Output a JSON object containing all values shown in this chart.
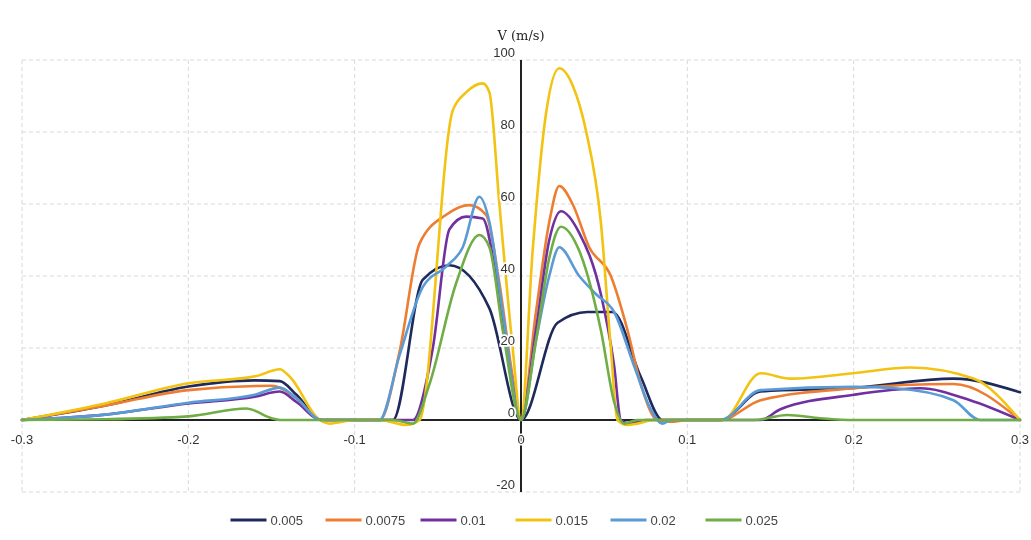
{
  "chart_data": {
    "type": "line",
    "ylabel": "V (m/s)",
    "xlim": [
      -0.3,
      0.3
    ],
    "ylim": [
      -20,
      100
    ],
    "xticks": [
      -0.3,
      -0.2,
      -0.1,
      0,
      0.1,
      0.2,
      0.3
    ],
    "yticks": [
      -20,
      0,
      20,
      40,
      60,
      80,
      100
    ],
    "grid": true,
    "legend": "bottom",
    "series": [
      {
        "name": "0.005",
        "color": "#1f2a5c",
        "x": [
          -0.3,
          -0.25,
          -0.2,
          -0.16,
          -0.145,
          -0.135,
          -0.12,
          -0.1,
          -0.077,
          -0.059,
          -0.043,
          -0.019,
          0,
          0.022,
          0.04,
          0.055,
          0.072,
          0.085,
          0.1,
          0.12,
          0.144,
          0.2,
          0.26,
          0.3
        ],
        "values": [
          0,
          4,
          9.3,
          11,
          10.8,
          7,
          0,
          0,
          0,
          39,
          43,
          31,
          0,
          27,
          30,
          30,
          12,
          0,
          0,
          0,
          7.9,
          8.9,
          11.5,
          7.7
        ]
      },
      {
        "name": "0.0075",
        "color": "#ed7d31",
        "x": [
          -0.3,
          -0.25,
          -0.2,
          -0.15,
          -0.135,
          -0.12,
          -0.1,
          -0.085,
          -0.073,
          -0.061,
          -0.045,
          -0.031,
          -0.021,
          -0.013,
          -0.005,
          0,
          0.009,
          0.017,
          0.023,
          0.031,
          0.041,
          0.054,
          0.064,
          0.072,
          0.082,
          0.09,
          0.1,
          0.12,
          0.144,
          0.2,
          0.26,
          0.3
        ],
        "values": [
          0,
          4,
          8.3,
          9.5,
          6,
          0,
          0,
          0,
          19,
          49,
          57,
          59.7,
          57,
          38,
          12,
          0,
          30,
          55,
          65,
          60,
          48,
          40,
          25,
          10,
          0,
          -0.5,
          0,
          0,
          5.5,
          8.8,
          10,
          0
        ]
      },
      {
        "name": "0.01",
        "color": "#7030a0",
        "x": [
          -0.3,
          -0.25,
          -0.2,
          -0.16,
          -0.145,
          -0.135,
          -0.12,
          -0.1,
          -0.065,
          -0.053,
          -0.043,
          -0.033,
          -0.023,
          -0.015,
          -0.007,
          0,
          0.009,
          0.017,
          0.024,
          0.035,
          0.048,
          0.056,
          0.06,
          0.065,
          0.075,
          0.1,
          0.144,
          0.156,
          0.2,
          0.24,
          0.27,
          0.3
        ],
        "values": [
          0,
          1.5,
          4.6,
          6.5,
          7.9,
          5,
          0,
          0,
          0,
          20,
          53,
          56.5,
          56,
          40,
          15,
          0,
          25,
          50,
          58,
          52,
          35,
          15,
          0,
          -1,
          0,
          0,
          0,
          3,
          7,
          8.8,
          5.5,
          0
        ]
      },
      {
        "name": "0.015",
        "color": "#f2c311",
        "x": [
          -0.3,
          -0.25,
          -0.2,
          -0.159,
          -0.145,
          -0.139,
          -0.121,
          -0.115,
          -0.1,
          -0.085,
          -0.069,
          -0.061,
          -0.041,
          -0.033,
          -0.023,
          -0.019,
          -0.013,
          -0.005,
          0,
          0.007,
          0.015,
          0.023,
          0.031,
          0.039,
          0.048,
          0.054,
          0.058,
          0.064,
          0.07,
          0.08,
          0.1,
          0.121,
          0.144,
          0.162,
          0.2,
          0.234,
          0.272,
          0.3
        ],
        "values": [
          0,
          4.6,
          10.2,
          12.2,
          14.1,
          12,
          0,
          -1,
          0,
          0,
          -1.4,
          0,
          86,
          91,
          93.5,
          91,
          60,
          20,
          0,
          47,
          85,
          97.7,
          93,
          80.5,
          55,
          20,
          0,
          -1.4,
          -1,
          0,
          0,
          0,
          13,
          11.5,
          13,
          14.6,
          11.5,
          0
        ]
      },
      {
        "name": "0.02",
        "color": "#5b9bd5",
        "x": [
          -0.3,
          -0.25,
          -0.2,
          -0.16,
          -0.145,
          -0.135,
          -0.12,
          -0.1,
          -0.085,
          -0.073,
          -0.059,
          -0.045,
          -0.035,
          -0.025,
          -0.019,
          -0.011,
          0,
          0.009,
          0.017,
          0.023,
          0.035,
          0.045,
          0.056,
          0.068,
          0.078,
          0.085,
          0.09,
          0.1,
          0.12,
          0.144,
          0.2,
          0.225,
          0.26,
          0.276,
          0.3
        ],
        "values": [
          0,
          1.5,
          4.8,
          7,
          9,
          6,
          0,
          0,
          0,
          18,
          37,
          42.6,
          48,
          62,
          55,
          30,
          0,
          22,
          40,
          48,
          40,
          35,
          30,
          15,
          3,
          -1,
          0,
          0,
          0,
          8.3,
          9.2,
          8.8,
          5.5,
          0,
          0
        ]
      },
      {
        "name": "0.025",
        "color": "#70ad47",
        "x": [
          -0.3,
          -0.25,
          -0.2,
          -0.165,
          -0.15,
          -0.145,
          -0.1,
          -0.085,
          -0.077,
          -0.065,
          -0.055,
          -0.039,
          -0.025,
          -0.019,
          -0.011,
          0,
          0.009,
          0.017,
          0.024,
          0.035,
          0.048,
          0.056,
          0.062,
          0.07,
          0.1,
          0.14,
          0.16,
          0.18,
          0.2,
          0.3
        ],
        "values": [
          0,
          0.2,
          1,
          3.2,
          0.5,
          0,
          0,
          0,
          0,
          -1,
          10,
          38,
          51.4,
          48,
          25,
          0,
          22,
          45,
          53.7,
          47,
          25,
          5,
          -1,
          0,
          0,
          0,
          1.4,
          0.5,
          0,
          0
        ]
      }
    ]
  }
}
